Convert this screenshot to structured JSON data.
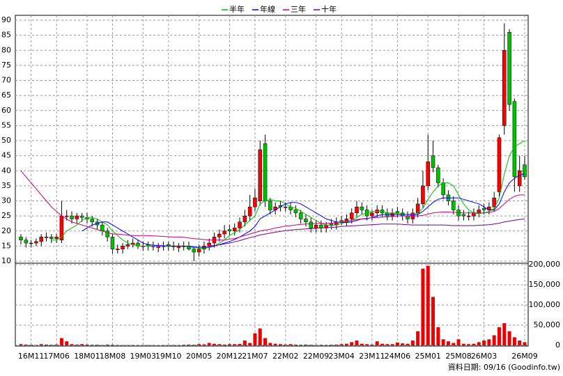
{
  "chart_data": [
    {
      "type": "candlestick",
      "categories": [
        null,
        null,
        "16M11",
        null,
        null,
        null,
        null,
        "17M06",
        null,
        null,
        null,
        null,
        null,
        "18M01",
        null,
        null,
        null,
        null,
        "18M08",
        null,
        null,
        null,
        null,
        null,
        "19M03",
        null,
        null,
        null,
        null,
        "19M10",
        null,
        null,
        null,
        null,
        null,
        "20M05",
        null,
        null,
        null,
        null,
        null,
        "20M12",
        null,
        null,
        null,
        null,
        "21M07",
        null,
        null,
        null,
        null,
        null,
        "22M02",
        null,
        null,
        null,
        null,
        null,
        "22M09",
        null,
        null,
        null,
        null,
        "23M04",
        null,
        null,
        null,
        null,
        null,
        "23M11",
        null,
        null,
        null,
        null,
        "24M06",
        null,
        null,
        null,
        null,
        null,
        "25M01",
        null,
        null,
        null,
        null,
        null,
        "25M08",
        null,
        null,
        null,
        null,
        "26M03",
        null,
        null,
        null,
        null,
        null,
        null,
        null,
        "26M09"
      ],
      "open": [
        18,
        17,
        16,
        16,
        16.5,
        18,
        18,
        17.5,
        17,
        25,
        25,
        24,
        25,
        24.5,
        24,
        23,
        22,
        20,
        18,
        14,
        14,
        15,
        15.5,
        16,
        15,
        15.5,
        15,
        14.5,
        15,
        15.5,
        15,
        14.5,
        15,
        15,
        14,
        13,
        14,
        15,
        16,
        18,
        19,
        20.5,
        20,
        21,
        23,
        25,
        28,
        30,
        49,
        30,
        27,
        28.5,
        28,
        28,
        27,
        26,
        24,
        23,
        21,
        22,
        21,
        22.5,
        22,
        23.5,
        23,
        24,
        26,
        28,
        27,
        25,
        26,
        27,
        26,
        25,
        26.5,
        26,
        25,
        24,
        26,
        29,
        35,
        45,
        41,
        36,
        32,
        30,
        27,
        25.5,
        25,
        25,
        26,
        27.5,
        27,
        28,
        33,
        55,
        86,
        63,
        35,
        42
      ],
      "high": [
        19,
        18,
        17,
        17.5,
        19,
        19.5,
        19,
        19,
        30,
        27,
        26.5,
        26,
        26,
        26,
        25,
        24,
        23,
        21,
        19,
        15.5,
        16,
        17,
        17.5,
        17,
        16.5,
        16.5,
        16.5,
        16,
        16.5,
        16.5,
        16.5,
        16,
        16.5,
        16.5,
        15,
        15.5,
        16.5,
        17.5,
        19.5,
        20.5,
        22,
        22,
        22.5,
        24.5,
        27,
        32,
        34,
        50,
        52,
        31,
        29.5,
        30,
        29.5,
        29.5,
        28.5,
        27,
        25.5,
        24.5,
        23.5,
        23.5,
        23,
        24,
        24.5,
        25,
        25.5,
        27.5,
        30,
        29.5,
        28.5,
        27,
        28.5,
        28.5,
        27.5,
        27.5,
        28,
        27.5,
        26.5,
        27.5,
        31,
        40,
        52,
        50,
        42,
        37.5,
        33.5,
        31.5,
        28.5,
        27,
        26.5,
        27.5,
        28.5,
        29,
        29.5,
        33,
        52,
        89,
        87,
        64,
        45,
        45
      ],
      "low": [
        15.5,
        14.5,
        14.5,
        15,
        15,
        16.5,
        16,
        16,
        16,
        23.5,
        22.5,
        22.5,
        23,
        22.5,
        21.5,
        20.5,
        18.5,
        16.5,
        12.5,
        12.5,
        12.5,
        14,
        14.5,
        14,
        13.5,
        13.5,
        13.5,
        13,
        13.5,
        13.5,
        13.5,
        13,
        13.5,
        13.5,
        10,
        11.5,
        12.5,
        13.5,
        14.5,
        16.5,
        17.5,
        18.5,
        18.5,
        19.5,
        21.5,
        23.5,
        26.5,
        28.5,
        28,
        25.5,
        25.5,
        26.5,
        26.5,
        25.5,
        24.5,
        22.5,
        21.5,
        19.5,
        19.5,
        19.5,
        19.5,
        20.5,
        20.5,
        22,
        21.5,
        22.5,
        24.5,
        25.5,
        23.5,
        23.5,
        24.5,
        24.5,
        23.5,
        23.5,
        24.5,
        23.5,
        22.5,
        22.5,
        24.5,
        27.5,
        33.5,
        39.5,
        34.5,
        30.5,
        28.5,
        25.5,
        23.5,
        23.5,
        23.5,
        23.5,
        24.5,
        25.5,
        25.5,
        26.5,
        31.5,
        52,
        60,
        33,
        33,
        37
      ],
      "close": [
        17,
        16,
        16,
        16.5,
        18,
        18,
        17.5,
        18,
        25,
        25,
        24,
        25,
        24.5,
        24,
        23,
        22,
        20,
        18,
        14,
        14,
        15,
        15.5,
        16,
        15,
        15,
        15,
        15,
        15,
        15,
        15,
        15,
        15,
        15,
        14,
        13,
        14,
        15,
        16,
        18,
        19,
        20,
        20,
        21,
        23,
        25,
        28,
        31,
        47,
        30,
        27,
        28,
        28,
        28,
        27,
        26,
        24,
        23,
        21,
        22,
        21,
        22,
        22,
        23,
        23,
        24,
        26,
        28,
        27,
        25,
        26,
        27,
        26,
        25,
        26,
        26,
        25,
        24,
        26,
        29,
        35,
        43,
        41,
        36,
        32,
        30,
        27,
        25,
        25,
        25,
        26,
        27,
        27,
        28,
        31,
        51,
        80,
        62,
        38,
        40,
        38
      ],
      "up_color": "#ff0000",
      "down_color": "#00c000",
      "series": [
        {
          "name": "半年",
          "color": "#00c000",
          "values": [
            null,
            null,
            null,
            null,
            null,
            null,
            17,
            17,
            18,
            20,
            21,
            22,
            23.5,
            24.5,
            24.5,
            24,
            23,
            22,
            20,
            18.5,
            17,
            16,
            15.5,
            15,
            15,
            15,
            15,
            15,
            15,
            15,
            15,
            15,
            15,
            14.8,
            14.5,
            14.3,
            14.3,
            14.5,
            15,
            16,
            17,
            18.5,
            19.5,
            20.5,
            22,
            23.5,
            25,
            29,
            30,
            30.5,
            30,
            30,
            29,
            28,
            27.5,
            26.5,
            25.5,
            24.5,
            23.5,
            22.5,
            22,
            21.8,
            22,
            22.5,
            23,
            23.5,
            24.5,
            25.5,
            26,
            26.5,
            26.5,
            26.5,
            26,
            26,
            25.8,
            25.5,
            25.5,
            25.5,
            26,
            27.5,
            30.5,
            33,
            35,
            36,
            36,
            35,
            32,
            29,
            27,
            26,
            25.8,
            26,
            26.5,
            27.5,
            31,
            39,
            45,
            48,
            49,
            50
          ]
        },
        {
          "name": "年線",
          "color": "#0000ff",
          "values": [
            null,
            null,
            null,
            null,
            null,
            null,
            null,
            null,
            null,
            null,
            null,
            null,
            20,
            21,
            22,
            22.5,
            23,
            23,
            22,
            21,
            20,
            19,
            18,
            17,
            16,
            15.5,
            15.3,
            15.2,
            15.1,
            15,
            15,
            15,
            15,
            14.9,
            14.7,
            14.6,
            14.6,
            14.7,
            15,
            15.5,
            16,
            16.5,
            17.2,
            18,
            19,
            20,
            21.5,
            24,
            25,
            26,
            27,
            28,
            29,
            29.5,
            29.5,
            29,
            28,
            27,
            26,
            25,
            24,
            23.5,
            23,
            22.8,
            22.8,
            23,
            23.5,
            24,
            24,
            24.5,
            25,
            25.5,
            25.5,
            25.5,
            25.5,
            25.5,
            25.5,
            25.3,
            25.5,
            26.5,
            28,
            29.5,
            30.5,
            31,
            31,
            31,
            31,
            30.5,
            30,
            29.5,
            29,
            28,
            27,
            27,
            29,
            33,
            36,
            37.5,
            38.5,
            39
          ]
        },
        {
          "name": "三年",
          "color": "#d0006f",
          "values": [
            40,
            38,
            36,
            34,
            32,
            30,
            28,
            26.5,
            25,
            24,
            23,
            22.5,
            22,
            21.5,
            21,
            20.5,
            20,
            19.5,
            19,
            19,
            18.8,
            18.6,
            18.5,
            18.5,
            18.5,
            18.5,
            18.4,
            18.3,
            18.2,
            18.1,
            18,
            18,
            17.9,
            17.7,
            17.5,
            17.3,
            17.2,
            17,
            17,
            17,
            17,
            17.3,
            17.5,
            18,
            18.5,
            19,
            19.5,
            20,
            20.3,
            20.6,
            21,
            21.3,
            21.6,
            21.8,
            22,
            22.2,
            22.3,
            22.4,
            22.5,
            22.5,
            22.5,
            22.6,
            22.8,
            23,
            23.2,
            23.5,
            23.8,
            24,
            24.2,
            24.4,
            24.5,
            24.6,
            24.7,
            24.8,
            25,
            25,
            25,
            25,
            25,
            25.2,
            25.6,
            26,
            26.2,
            26.3,
            26.3,
            26.2,
            26.1,
            26,
            26,
            26,
            26,
            26,
            26.2,
            26.5,
            27.5,
            29,
            30.5,
            31.5,
            32,
            32
          ]
        },
        {
          "name": "十年",
          "color": "#7000a0",
          "values": [
            null,
            null,
            null,
            null,
            null,
            null,
            null,
            null,
            null,
            null,
            null,
            null,
            null,
            null,
            null,
            null,
            null,
            null,
            null,
            null,
            null,
            null,
            null,
            null,
            null,
            null,
            null,
            null,
            null,
            null,
            null,
            null,
            null,
            null,
            null,
            null,
            null,
            15,
            15.2,
            15.4,
            15.7,
            16,
            16.4,
            16.8,
            17.3,
            17.8,
            18.2,
            18.7,
            19,
            19.3,
            19.6,
            19.9,
            20.1,
            20.3,
            20.5,
            20.6,
            20.7,
            20.8,
            20.9,
            21,
            21.1,
            21.2,
            21.3,
            21.5,
            21.6,
            21.7,
            21.8,
            21.9,
            22,
            22.1,
            22.2,
            22.3,
            22.3,
            22.3,
            22.3,
            22.2,
            22.1,
            22,
            22,
            22,
            22,
            22,
            22,
            22,
            21.9,
            21.8,
            21.8,
            21.8,
            21.8,
            21.8,
            21.9,
            22,
            22.1,
            22.3,
            22.6,
            23,
            23.3,
            23.6,
            23.8,
            24
          ]
        }
      ],
      "ylim": [
        10,
        90
      ],
      "yticks": [
        10,
        15,
        20,
        25,
        30,
        35,
        40,
        45,
        50,
        55,
        60,
        65,
        70,
        75,
        80,
        85,
        90
      ],
      "grid": true
    },
    {
      "type": "bar",
      "values": [
        3000,
        2000,
        1500,
        1000,
        3000,
        2000,
        1500,
        2000,
        18000,
        10000,
        3000,
        2000,
        3000,
        2000,
        1500,
        1500,
        1000,
        2000,
        1500,
        1000,
        800,
        800,
        1000,
        800,
        800,
        800,
        800,
        600,
        800,
        800,
        1000,
        800,
        1500,
        2000,
        1500,
        3000,
        2500,
        6000,
        4000,
        3000,
        2000,
        3000,
        3000,
        3500,
        12000,
        6000,
        30000,
        42000,
        18000,
        6000,
        4000,
        3000,
        2000,
        3000,
        2000,
        1500,
        2000,
        1500,
        1000,
        1500,
        1200,
        1500,
        2000,
        3000,
        4000,
        8000,
        12000,
        4000,
        3000,
        2000,
        10000,
        4000,
        3000,
        3000,
        7000,
        5000,
        4000,
        12000,
        35000,
        190000,
        197000,
        120000,
        45000,
        15000,
        10000,
        6000,
        15000,
        4000,
        3000,
        4000,
        8000,
        12000,
        15000,
        25000,
        45000,
        55000,
        35000,
        20000,
        12000,
        8000
      ],
      "color": "#ee0000",
      "ylim": [
        0,
        200000
      ],
      "yticks": [
        0,
        {
          "value": 50000,
          "label": "50,000"
        },
        {
          "value": 100000,
          "label": "100,000"
        },
        {
          "value": 150000,
          "label": "150,000"
        },
        {
          "value": 200000,
          "label": "200,000"
        }
      ],
      "grid": true
    }
  ],
  "footer": "資料日期: 09/16  (Goodinfo.tw)"
}
